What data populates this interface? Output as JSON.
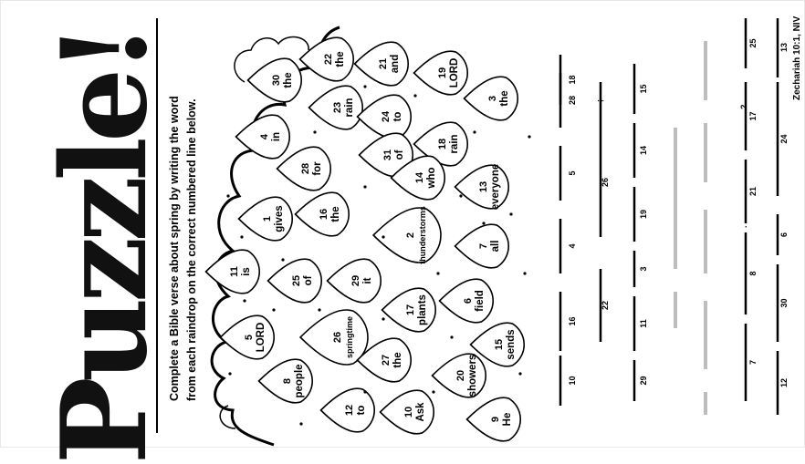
{
  "title": "Puzzle!",
  "instructions": {
    "line1": "Complete a Bible verse about spring by writing the word",
    "line2": "from each raindrop on the correct numbered line below."
  },
  "reference": "Zechariah 10:1, NIV",
  "drops": [
    {
      "n": "30",
      "w": "the"
    },
    {
      "n": "22",
      "w": "the"
    },
    {
      "n": "21",
      "w": "and"
    },
    {
      "n": "19",
      "w": "LORD"
    },
    {
      "n": "23",
      "w": "rain"
    },
    {
      "n": "24",
      "w": "to"
    },
    {
      "n": "3",
      "w": "the"
    },
    {
      "n": "4",
      "w": "in"
    },
    {
      "n": "31",
      "w": "of"
    },
    {
      "n": "18",
      "w": "rain"
    },
    {
      "n": "28",
      "w": "for"
    },
    {
      "n": "14",
      "w": "who"
    },
    {
      "n": "13",
      "w": "everyone"
    },
    {
      "n": "1",
      "w": "gives"
    },
    {
      "n": "16",
      "w": "the"
    },
    {
      "n": "2",
      "w": "thunderstorms"
    },
    {
      "n": "7",
      "w": "all"
    },
    {
      "n": "11",
      "w": "is"
    },
    {
      "n": "25",
      "w": "of"
    },
    {
      "n": "29",
      "w": "it"
    },
    {
      "n": "17",
      "w": "plants"
    },
    {
      "n": "6",
      "w": "field"
    },
    {
      "n": "5",
      "w": "LORD"
    },
    {
      "n": "26",
      "w": "springtime"
    },
    {
      "n": "15",
      "w": "sends"
    },
    {
      "n": "8",
      "w": "people"
    },
    {
      "n": "27",
      "w": "the"
    },
    {
      "n": "20",
      "w": "showers"
    },
    {
      "n": "12",
      "w": "to"
    },
    {
      "n": "10",
      "w": "Ask"
    },
    {
      "n": "9",
      "w": "He"
    }
  ],
  "answer_lines": {
    "col1": [
      "10",
      "16",
      "4",
      "5",
      "28",
      "18"
    ],
    "col1b": [
      "22",
      "26"
    ],
    "col2": [
      "29",
      "11",
      "3",
      "19",
      "14",
      "15"
    ],
    "col3": [
      "7",
      "8",
      "21",
      "17",
      "25"
    ],
    "col4": [
      "12",
      "30",
      "6",
      "24",
      "13"
    ],
    "punct": [
      ";",
      ".",
      "?"
    ]
  }
}
